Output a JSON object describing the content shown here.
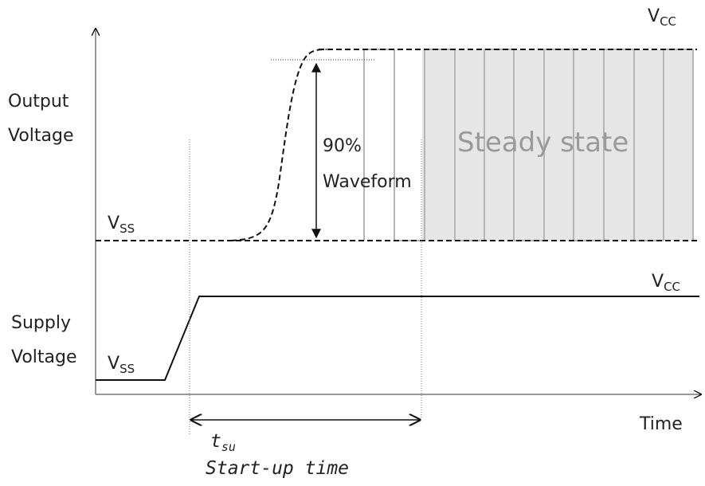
{
  "labels": {
    "output_voltage_line1": "Output",
    "output_voltage_line2": "Voltage",
    "supply_voltage_line1": "Supply",
    "supply_voltage_line2": "Voltage",
    "time": "Time",
    "steady_state": "Steady state",
    "percent_90": "90%",
    "waveform": "Waveform",
    "tsu_main": "t",
    "tsu_sub": "su",
    "startup_time": "Start-up time",
    "vcc_main": "V",
    "vcc_sub": "CC",
    "vss_main": "V",
    "vss_sub": "SS"
  },
  "colors": {
    "line": "#111111",
    "steady_fill": "#e6e6e6",
    "steady_stroke": "#b5b5b5",
    "guide": "#777777",
    "steady_text": "#9a9a9a"
  }
}
